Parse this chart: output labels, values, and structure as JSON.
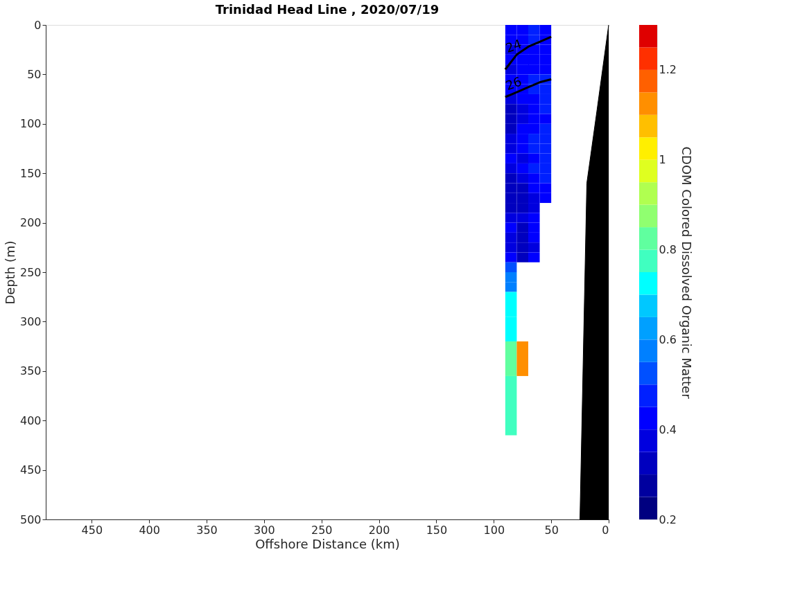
{
  "chart_data": {
    "type": "heatmap",
    "title": "Trinidad Head Line , 2020/07/19",
    "xlabel": "Offshore Distance (km)",
    "ylabel": "Depth (m)",
    "clabel": "CDOM Colored Dissolved Organic Matter",
    "x": [
      85,
      75,
      65,
      55
    ],
    "y": [
      5,
      15,
      25,
      35,
      45,
      55,
      65,
      75,
      85,
      95,
      105,
      115,
      125,
      135,
      145,
      155,
      165,
      175,
      185,
      195,
      205,
      215,
      225,
      235,
      245,
      255,
      265,
      275,
      315,
      325,
      385
    ],
    "cells": [
      [
        0.4,
        0.4,
        0.45,
        0.42
      ],
      [
        0.4,
        0.42,
        0.45,
        0.42
      ],
      [
        0.38,
        0.4,
        0.42,
        0.4
      ],
      [
        0.4,
        0.4,
        0.42,
        0.42
      ],
      [
        0.38,
        0.4,
        0.42,
        0.42
      ],
      [
        0.4,
        0.42,
        0.45,
        0.45
      ],
      [
        0.4,
        0.42,
        0.45,
        0.45
      ],
      [
        0.38,
        0.4,
        0.42,
        0.45
      ],
      [
        0.35,
        0.38,
        0.42,
        0.45
      ],
      [
        0.35,
        0.38,
        0.4,
        0.42
      ],
      [
        0.35,
        0.4,
        0.42,
        0.45
      ],
      [
        0.38,
        0.42,
        0.45,
        0.47
      ],
      [
        0.38,
        0.4,
        0.45,
        0.45
      ],
      [
        0.4,
        0.38,
        0.42,
        0.45
      ],
      [
        0.38,
        0.4,
        0.45,
        0.47
      ],
      [
        0.35,
        0.38,
        0.42,
        0.45
      ],
      [
        0.35,
        0.35,
        0.4,
        0.42
      ],
      [
        0.33,
        0.33,
        0.38,
        0.42
      ],
      [
        0.35,
        0.33,
        0.38,
        null
      ],
      [
        0.38,
        0.38,
        0.42,
        null
      ],
      [
        0.4,
        0.35,
        0.42,
        null
      ],
      [
        0.38,
        0.33,
        0.4,
        null
      ],
      [
        0.38,
        0.33,
        0.38,
        null
      ],
      [
        0.42,
        0.35,
        0.4,
        null
      ],
      [
        0.5,
        null,
        null,
        null
      ],
      [
        0.55,
        null,
        null,
        null
      ],
      [
        0.6,
        null,
        null,
        null
      ],
      [
        0.7,
        null,
        null,
        null
      ],
      [
        0.7,
        null,
        null,
        null
      ],
      [
        0.8,
        1.1,
        null,
        null
      ],
      [
        0.75,
        null,
        null,
        null
      ]
    ],
    "colors": [
      "#000080",
      "#00009f",
      "#0000bf",
      "#0000df",
      "#0000ff",
      "#0020ff",
      "#0050ff",
      "#0080ff",
      "#00a0ff",
      "#00c8ff",
      "#00ffff",
      "#40ffc0",
      "#60ff9f",
      "#90ff70",
      "#b0ff50",
      "#dfff20",
      "#ffef00",
      "#ffbf00",
      "#ff8f00",
      "#ff6000",
      "#ff3000",
      "#df0000"
    ],
    "clim": [
      0.2,
      1.3
    ],
    "cticks": [
      0.2,
      0.4,
      0.6,
      0.8,
      1,
      1.2
    ],
    "series": [
      {
        "type": "area",
        "color": "#000000",
        "x": [
          0,
          10,
          19,
          25,
          0
        ],
        "values": [
          0,
          85,
          160,
          500,
          500
        ]
      },
      {
        "type": "line",
        "color": "#000000",
        "x": [
          90,
          80,
          70,
          60,
          50
        ],
        "values": [
          45,
          30,
          22,
          17,
          12
        ]
      },
      {
        "type": "line",
        "color": "#000000",
        "x": [
          90,
          80,
          70,
          60,
          50
        ],
        "values": [
          73,
          68,
          63,
          58,
          55
        ]
      }
    ],
    "annotations": [
      {
        "text": "24",
        "x": 80,
        "y": 30
      },
      {
        "text": "26",
        "x": 80,
        "y": 68
      }
    ],
    "xlim": [
      490,
      0
    ],
    "ylim": [
      500,
      0
    ],
    "xticks": [
      0,
      50,
      100,
      150,
      200,
      250,
      300,
      350,
      400,
      450
    ],
    "yticks": [
      0,
      50,
      100,
      150,
      200,
      250,
      300,
      350,
      400,
      450,
      500
    ],
    "grid": false
  }
}
